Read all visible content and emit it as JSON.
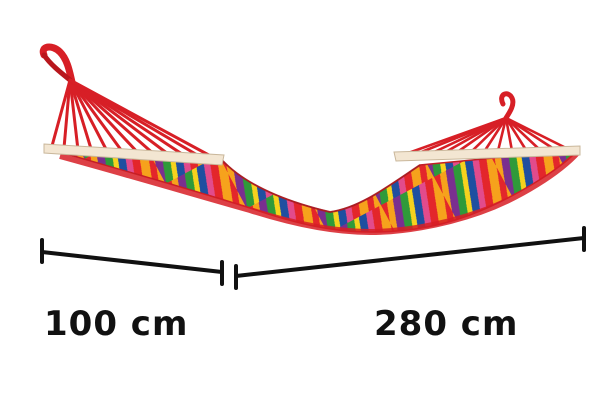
{
  "dimensions": {
    "width_label": "100 cm",
    "length_label": "280 cm"
  },
  "colors": {
    "rope": "#d71f26",
    "spreader_bar": "#f3e6d2",
    "dimension_line": "#111111",
    "stripes": [
      "#e3262b",
      "#f6a21c",
      "#7a2f8f",
      "#2f9a3a",
      "#f6d21e",
      "#1f4fa0",
      "#e24b8c"
    ]
  }
}
